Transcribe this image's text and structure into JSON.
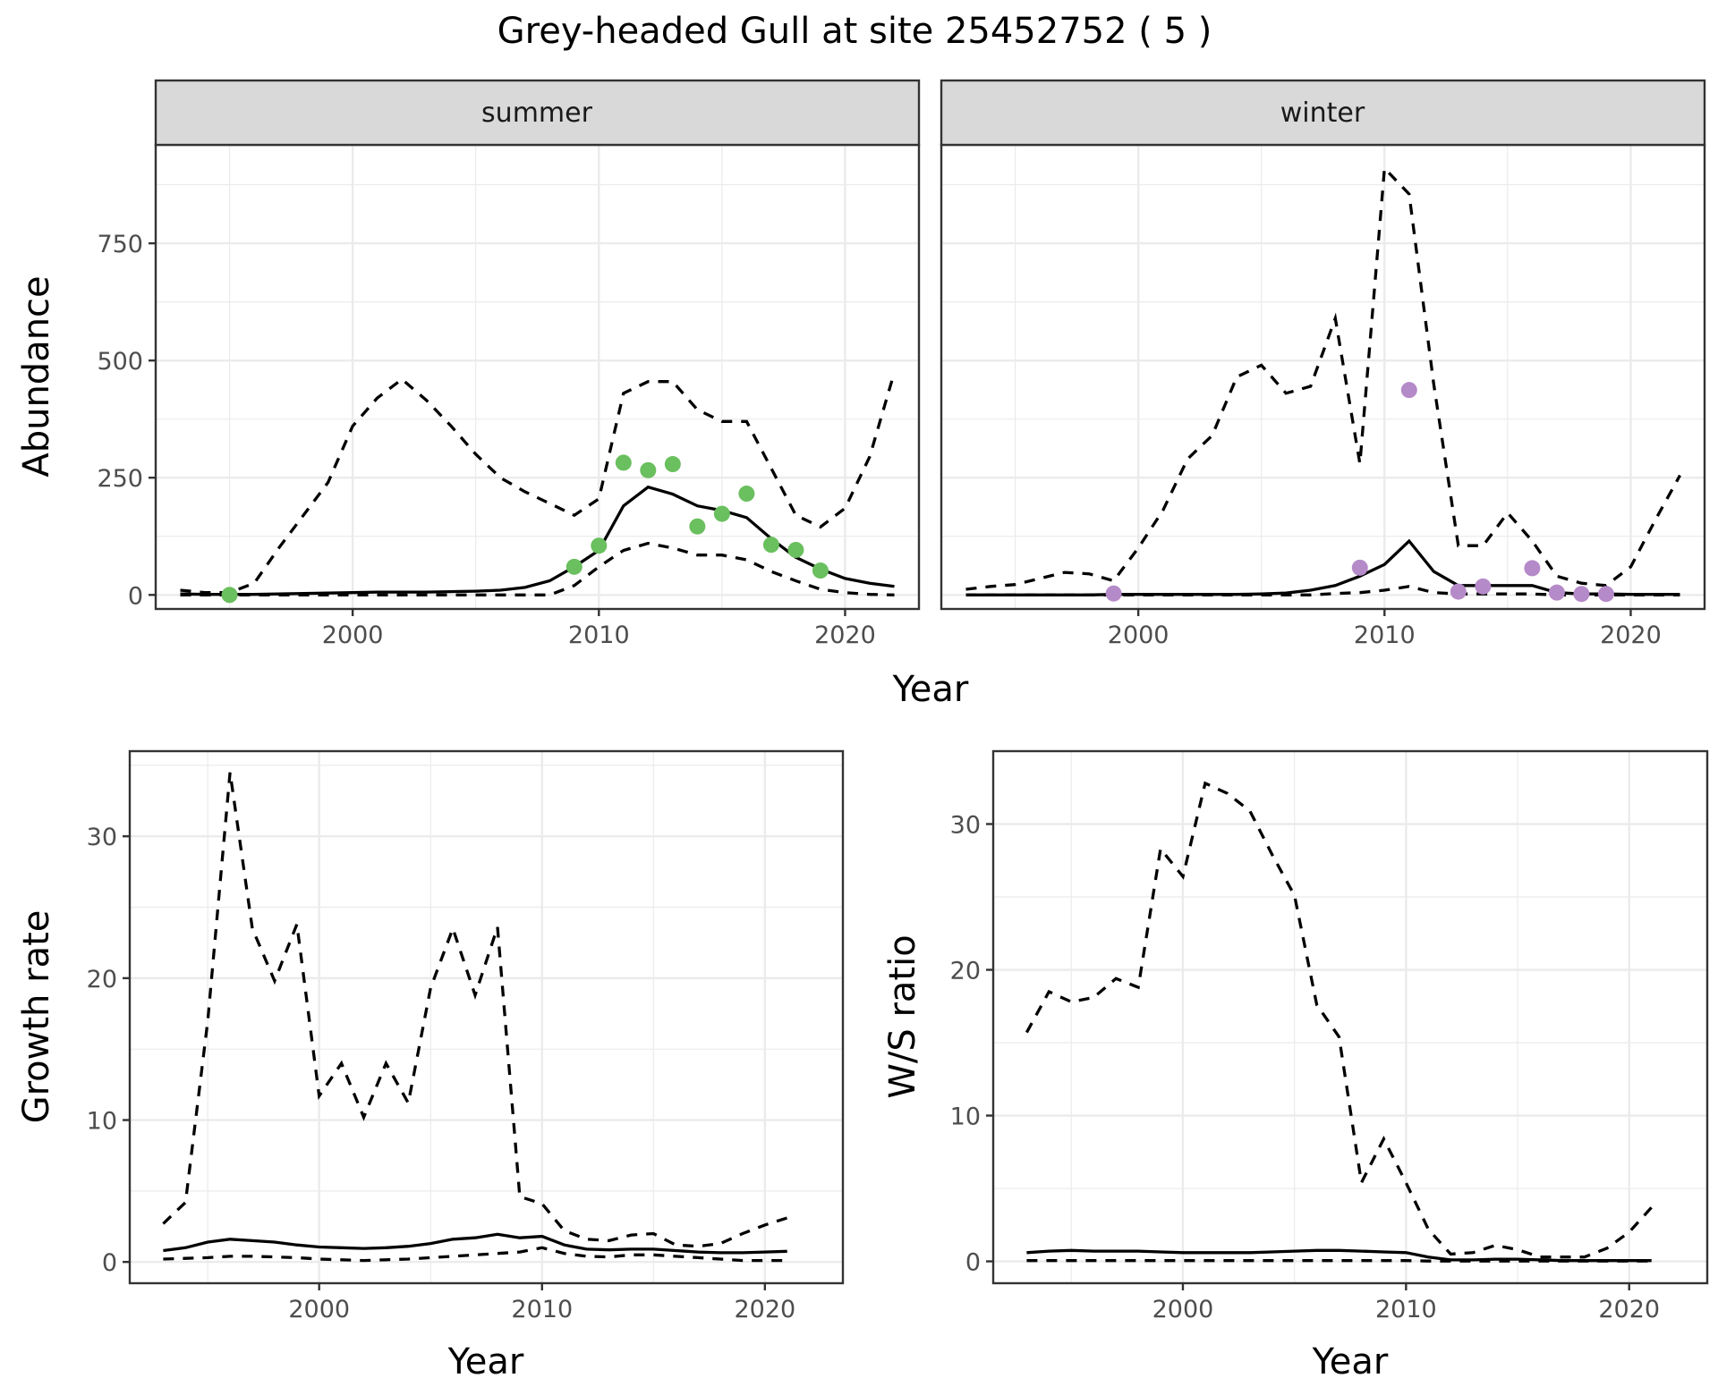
{
  "title": "Grey-headed Gull at site 25452752 ( 5 )",
  "chart_data": [
    {
      "type": "line",
      "panel": "summer",
      "strip": "summer",
      "xlabel": "Year",
      "ylabel": "Abundance",
      "xlim": [
        1992,
        2023
      ],
      "ylim": [
        -30,
        960
      ],
      "xticks": [
        2000,
        2010,
        2020
      ],
      "yticks": [
        0,
        250,
        500,
        750
      ],
      "series": [
        {
          "role": "mean",
          "x": [
            1993,
            1994,
            1995,
            1996,
            1997,
            1998,
            1999,
            2000,
            2001,
            2002,
            2003,
            2004,
            2005,
            2006,
            2007,
            2008,
            2009,
            2010,
            2011,
            2012,
            2013,
            2014,
            2015,
            2016,
            2017,
            2018,
            2019,
            2020,
            2021,
            2022
          ],
          "values": [
            2,
            1,
            1,
            1,
            2,
            3,
            4,
            5,
            6,
            6,
            6,
            7,
            8,
            10,
            16,
            30,
            60,
            95,
            190,
            230,
            215,
            190,
            180,
            165,
            120,
            80,
            55,
            35,
            25,
            18
          ]
        },
        {
          "role": "lower",
          "x": [
            1993,
            1994,
            1995,
            1996,
            1997,
            1998,
            1999,
            2000,
            2001,
            2002,
            2003,
            2004,
            2005,
            2006,
            2007,
            2008,
            2009,
            2010,
            2011,
            2012,
            2013,
            2014,
            2015,
            2016,
            2017,
            2018,
            2019,
            2020,
            2021,
            2022
          ],
          "values": [
            0,
            0,
            0,
            0,
            0,
            0,
            0,
            0,
            0,
            0,
            0,
            0,
            0,
            0,
            0,
            0,
            20,
            60,
            95,
            110,
            100,
            85,
            85,
            75,
            50,
            30,
            12,
            5,
            1,
            0
          ]
        },
        {
          "role": "upper",
          "x": [
            1993,
            1994,
            1995,
            1996,
            1997,
            1998,
            1999,
            2000,
            2001,
            2002,
            2003,
            2004,
            2005,
            2006,
            2007,
            2008,
            2009,
            2010,
            2011,
            2012,
            2013,
            2014,
            2015,
            2016,
            2017,
            2018,
            2019,
            2020,
            2021,
            2022
          ],
          "values": [
            10,
            5,
            5,
            25,
            100,
            170,
            240,
            360,
            420,
            460,
            415,
            360,
            300,
            250,
            220,
            195,
            170,
            205,
            430,
            455,
            455,
            395,
            370,
            370,
            270,
            170,
            145,
            185,
            295,
            475
          ]
        }
      ],
      "points": {
        "color": "#6abf5e",
        "x": [
          1995,
          2009,
          2010,
          2011,
          2012,
          2013,
          2014,
          2015,
          2016,
          2017,
          2018,
          2019
        ],
        "values": [
          0,
          60,
          105,
          282,
          266,
          279,
          146,
          173,
          216,
          107,
          96,
          52
        ]
      }
    },
    {
      "type": "line",
      "panel": "winter",
      "strip": "winter",
      "xlabel": "Year",
      "ylabel": "",
      "xlim": [
        1992,
        2023
      ],
      "ylim": [
        -30,
        960
      ],
      "xticks": [
        2000,
        2010,
        2020
      ],
      "yticks": [
        0,
        250,
        500,
        750
      ],
      "series": [
        {
          "role": "mean",
          "x": [
            1993,
            1994,
            1995,
            1996,
            1997,
            1998,
            1999,
            2000,
            2001,
            2002,
            2003,
            2004,
            2005,
            2006,
            2007,
            2008,
            2009,
            2010,
            2011,
            2012,
            2013,
            2014,
            2015,
            2016,
            2017,
            2018,
            2019,
            2020,
            2021,
            2022
          ],
          "values": [
            0,
            0,
            0,
            0,
            0,
            0,
            1,
            1,
            1,
            1,
            1,
            1,
            2,
            4,
            10,
            20,
            40,
            65,
            115,
            50,
            20,
            20,
            20,
            20,
            5,
            2,
            2,
            1,
            1,
            1
          ]
        },
        {
          "role": "lower",
          "x": [
            1993,
            1994,
            1995,
            1996,
            1997,
            1998,
            1999,
            2000,
            2001,
            2002,
            2003,
            2004,
            2005,
            2006,
            2007,
            2008,
            2009,
            2010,
            2011,
            2012,
            2013,
            2014,
            2015,
            2016,
            2017,
            2018,
            2019,
            2020,
            2021,
            2022
          ],
          "values": [
            0,
            0,
            0,
            0,
            0,
            0,
            0,
            0,
            0,
            0,
            0,
            0,
            0,
            0,
            0,
            3,
            5,
            10,
            18,
            5,
            2,
            2,
            2,
            2,
            0,
            0,
            0,
            0,
            0,
            0
          ]
        },
        {
          "role": "upper",
          "x": [
            1993,
            1994,
            1995,
            1996,
            1997,
            1998,
            1999,
            2000,
            2001,
            2002,
            2003,
            2004,
            2005,
            2006,
            2007,
            2008,
            2009,
            2010,
            2011,
            2012,
            2013,
            2014,
            2015,
            2016,
            2017,
            2018,
            2019,
            2020,
            2021,
            2022
          ],
          "values": [
            12,
            18,
            22,
            35,
            48,
            45,
            30,
            100,
            180,
            290,
            340,
            465,
            490,
            430,
            445,
            590,
            280,
            910,
            855,
            450,
            105,
            105,
            175,
            115,
            40,
            25,
            20,
            60,
            160,
            255
          ]
        }
      ],
      "points": {
        "color": "#b58ac8",
        "x": [
          1999,
          2009,
          2011,
          2013,
          2014,
          2016,
          2017,
          2018,
          2019
        ],
        "values": [
          3,
          58,
          437,
          7,
          18,
          57,
          5,
          2,
          2
        ]
      }
    },
    {
      "type": "line",
      "panel": "growth",
      "xlabel": "Year",
      "ylabel": "Growth rate",
      "xlim": [
        1991.5,
        2023.5
      ],
      "ylim": [
        -1.5,
        36
      ],
      "xticks": [
        2000,
        2010,
        2020
      ],
      "yticks": [
        0,
        10,
        20,
        30
      ],
      "series": [
        {
          "role": "mean",
          "x": [
            1993,
            1994,
            1995,
            1996,
            1997,
            1998,
            1999,
            2000,
            2001,
            2002,
            2003,
            2004,
            2005,
            2006,
            2007,
            2008,
            2009,
            2010,
            2011,
            2012,
            2013,
            2014,
            2015,
            2016,
            2017,
            2018,
            2019,
            2020,
            2021
          ],
          "values": [
            0.8,
            1.0,
            1.4,
            1.6,
            1.5,
            1.4,
            1.2,
            1.05,
            1.0,
            0.95,
            1.0,
            1.1,
            1.3,
            1.6,
            1.7,
            1.95,
            1.7,
            1.8,
            1.2,
            0.9,
            0.85,
            0.9,
            0.9,
            0.8,
            0.7,
            0.65,
            0.65,
            0.7,
            0.75
          ]
        },
        {
          "role": "lower",
          "x": [
            1993,
            1994,
            1995,
            1996,
            1997,
            1998,
            1999,
            2000,
            2001,
            2002,
            2003,
            2004,
            2005,
            2006,
            2007,
            2008,
            2009,
            2010,
            2011,
            2012,
            2013,
            2014,
            2015,
            2016,
            2017,
            2018,
            2019,
            2020,
            2021
          ],
          "values": [
            0.2,
            0.25,
            0.3,
            0.4,
            0.4,
            0.35,
            0.3,
            0.2,
            0.15,
            0.1,
            0.15,
            0.2,
            0.3,
            0.4,
            0.5,
            0.6,
            0.7,
            1.0,
            0.6,
            0.4,
            0.35,
            0.5,
            0.5,
            0.4,
            0.3,
            0.2,
            0.1,
            0.1,
            0.1
          ]
        },
        {
          "role": "upper",
          "x": [
            1993,
            1994,
            1995,
            1996,
            1997,
            1998,
            1999,
            2000,
            2001,
            2002,
            2003,
            2004,
            2005,
            2006,
            2007,
            2008,
            2009,
            2010,
            2011,
            2012,
            2013,
            2014,
            2015,
            2016,
            2017,
            2018,
            2019,
            2020,
            2021
          ],
          "values": [
            2.7,
            4.2,
            17.0,
            34.5,
            23.5,
            19.8,
            23.8,
            11.7,
            14.0,
            10.2,
            14.0,
            11.2,
            19.3,
            23.5,
            18.8,
            23.6,
            4.6,
            4.1,
            2.2,
            1.6,
            1.5,
            1.9,
            2.0,
            1.2,
            1.1,
            1.3,
            2.0,
            2.6,
            3.1
          ]
        }
      ]
    },
    {
      "type": "line",
      "panel": "ratio",
      "xlabel": "Year",
      "ylabel": "W/S ratio",
      "xlim": [
        1991.5,
        2023.5
      ],
      "ylim": [
        -1.5,
        35
      ],
      "xticks": [
        2000,
        2010,
        2020
      ],
      "yticks": [
        0,
        10,
        20,
        30
      ],
      "series": [
        {
          "role": "mean",
          "x": [
            1993,
            1994,
            1995,
            1996,
            1997,
            1998,
            1999,
            2000,
            2001,
            2002,
            2003,
            2004,
            2005,
            2006,
            2007,
            2008,
            2009,
            2010,
            2011,
            2012,
            2013,
            2014,
            2015,
            2016,
            2017,
            2018,
            2019,
            2020,
            2021
          ],
          "values": [
            0.6,
            0.7,
            0.75,
            0.7,
            0.7,
            0.7,
            0.65,
            0.6,
            0.6,
            0.6,
            0.6,
            0.65,
            0.7,
            0.75,
            0.75,
            0.7,
            0.65,
            0.6,
            0.3,
            0.1,
            0.1,
            0.15,
            0.15,
            0.1,
            0.05,
            0.05,
            0.05,
            0.05,
            0.05
          ]
        },
        {
          "role": "lower",
          "x": [
            1993,
            1994,
            1995,
            1996,
            1997,
            1998,
            1999,
            2000,
            2001,
            2002,
            2003,
            2004,
            2005,
            2006,
            2007,
            2008,
            2009,
            2010,
            2011,
            2012,
            2013,
            2014,
            2015,
            2016,
            2017,
            2018,
            2019,
            2020,
            2021
          ],
          "values": [
            0.05,
            0.05,
            0.05,
            0.05,
            0.05,
            0.05,
            0.05,
            0.05,
            0.05,
            0.05,
            0.05,
            0.05,
            0.05,
            0.05,
            0.05,
            0.05,
            0.05,
            0.05,
            0.02,
            0.02,
            0.02,
            0.02,
            0.02,
            0.02,
            0.02,
            0.02,
            0.02,
            0.02,
            0.02
          ]
        },
        {
          "role": "upper",
          "x": [
            1993,
            1994,
            1995,
            1996,
            1997,
            1998,
            1999,
            2000,
            2001,
            2002,
            2003,
            2004,
            2005,
            2006,
            2007,
            2008,
            2009,
            2010,
            2011,
            2012,
            2013,
            2014,
            2015,
            2016,
            2017,
            2018,
            2019,
            2020,
            2021
          ],
          "values": [
            15.7,
            18.5,
            17.8,
            18.1,
            19.4,
            18.8,
            28.3,
            26.4,
            32.8,
            32.1,
            30.9,
            27.9,
            25.1,
            17.6,
            15.4,
            5.4,
            8.4,
            5.4,
            2.2,
            0.5,
            0.6,
            1.1,
            0.8,
            0.3,
            0.3,
            0.3,
            0.9,
            2.0,
            3.7
          ]
        }
      ]
    }
  ]
}
